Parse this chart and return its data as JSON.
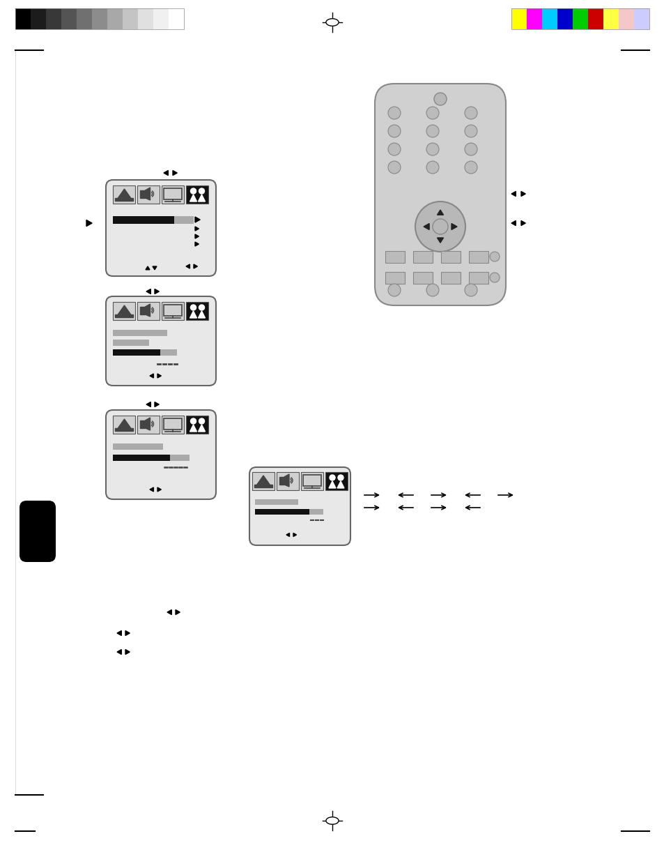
{
  "bg_color": "#ffffff",
  "box_face": "#e8e8e8",
  "box_edge": "#666666",
  "black": "#000000",
  "gray": "#aaaaaa",
  "darkgray": "#888888",
  "lightgray": "#d0d0d0",
  "grays_left": [
    "#000000",
    "#1c1c1c",
    "#383838",
    "#545454",
    "#707070",
    "#8c8c8c",
    "#a8a8a8",
    "#c4c4c4",
    "#e0e0e0",
    "#f0f0f0",
    "#ffffff"
  ],
  "colors_right": [
    "#ffff00",
    "#ff00ff",
    "#00ccff",
    "#0000cc",
    "#00cc00",
    "#cc0000",
    "#ffff44",
    "#f5c8c8",
    "#ccccff"
  ]
}
